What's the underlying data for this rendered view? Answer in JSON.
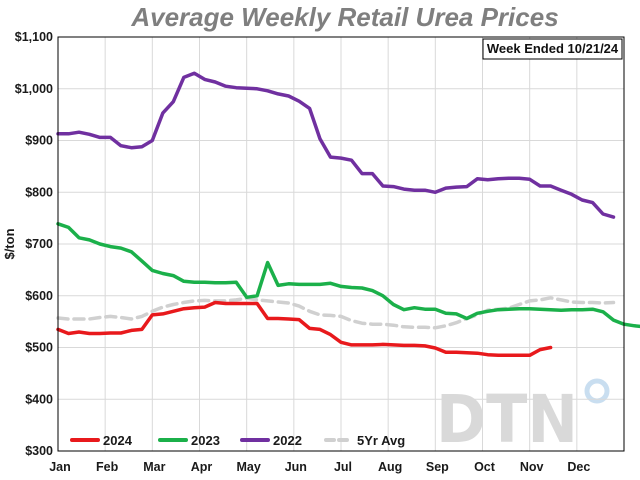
{
  "chart_data": {
    "type": "line",
    "title": "Average Weekly Retail Urea Prices",
    "ylabel": "$/ton",
    "annotation": "Week Ended 10/21/24",
    "logo_text": "DTN",
    "ylim": [
      300,
      1100
    ],
    "yticks": [
      300,
      400,
      500,
      600,
      700,
      800,
      900,
      1000,
      1100
    ],
    "ytick_labels": [
      "$300",
      "$400",
      "$500",
      "$600",
      "$700",
      "$800",
      "$900",
      "$1,000",
      "$1,100"
    ],
    "months": [
      "Jan",
      "Feb",
      "Mar",
      "Apr",
      "May",
      "Jun",
      "Jul",
      "Aug",
      "Sep",
      "Oct",
      "Nov",
      "Dec"
    ],
    "x_unit": "week",
    "grid": true,
    "legend_position": "bottom-left",
    "series": [
      {
        "name": "2024",
        "color": "#e8191c",
        "dash": false,
        "points": [
          [
            0,
            535
          ],
          [
            1,
            527
          ],
          [
            2,
            530
          ],
          [
            3,
            527
          ],
          [
            4,
            527
          ],
          [
            5,
            528
          ],
          [
            6,
            528
          ],
          [
            7,
            533
          ],
          [
            8,
            535
          ],
          [
            9,
            563
          ],
          [
            10,
            565
          ],
          [
            11,
            570
          ],
          [
            12,
            575
          ],
          [
            13,
            577
          ],
          [
            14,
            578
          ],
          [
            15,
            587
          ],
          [
            16,
            585
          ],
          [
            17,
            585
          ],
          [
            18,
            585
          ],
          [
            19,
            585
          ],
          [
            20,
            556
          ],
          [
            21,
            556
          ],
          [
            22,
            555
          ],
          [
            23,
            554
          ],
          [
            24,
            537
          ],
          [
            25,
            535
          ],
          [
            26,
            525
          ],
          [
            27,
            510
          ],
          [
            28,
            505
          ],
          [
            29,
            505
          ],
          [
            30,
            505
          ],
          [
            31,
            506
          ],
          [
            32,
            505
          ],
          [
            33,
            504
          ],
          [
            34,
            504
          ],
          [
            35,
            503
          ],
          [
            36,
            499
          ],
          [
            37,
            491
          ],
          [
            38,
            491
          ],
          [
            39,
            490
          ],
          [
            40,
            489
          ],
          [
            41,
            486
          ],
          [
            42,
            485
          ],
          [
            43,
            485
          ],
          [
            44,
            485
          ],
          [
            45,
            485
          ],
          [
            46,
            496
          ],
          [
            47,
            500
          ]
        ]
      },
      {
        "name": "2023",
        "color": "#1bb04a",
        "dash": false,
        "points": [
          [
            0,
            739
          ],
          [
            1,
            732
          ],
          [
            2,
            712
          ],
          [
            3,
            708
          ],
          [
            4,
            700
          ],
          [
            5,
            695
          ],
          [
            6,
            692
          ],
          [
            7,
            685
          ],
          [
            8,
            667
          ],
          [
            9,
            649
          ],
          [
            10,
            643
          ],
          [
            11,
            639
          ],
          [
            12,
            628
          ],
          [
            13,
            626
          ],
          [
            14,
            626
          ],
          [
            15,
            625
          ],
          [
            16,
            625
          ],
          [
            17,
            626
          ],
          [
            18,
            597
          ],
          [
            19,
            600
          ],
          [
            20,
            664
          ],
          [
            21,
            620
          ],
          [
            22,
            623
          ],
          [
            23,
            622
          ],
          [
            24,
            622
          ],
          [
            25,
            622
          ],
          [
            26,
            624
          ],
          [
            27,
            618
          ],
          [
            28,
            616
          ],
          [
            29,
            615
          ],
          [
            30,
            610
          ],
          [
            31,
            600
          ],
          [
            32,
            583
          ],
          [
            33,
            573
          ],
          [
            34,
            577
          ],
          [
            35,
            574
          ],
          [
            36,
            574
          ],
          [
            37,
            566
          ],
          [
            38,
            565
          ],
          [
            39,
            556
          ],
          [
            40,
            566
          ],
          [
            41,
            570
          ],
          [
            42,
            573
          ],
          [
            43,
            574
          ],
          [
            44,
            575
          ],
          [
            45,
            575
          ],
          [
            46,
            574
          ],
          [
            47,
            573
          ],
          [
            48,
            572
          ],
          [
            49,
            573
          ],
          [
            50,
            573
          ],
          [
            51,
            574
          ],
          [
            52,
            569
          ],
          [
            53,
            553
          ],
          [
            54,
            545
          ],
          [
            55,
            542
          ],
          [
            56,
            540
          ],
          [
            57,
            538
          ],
          [
            58,
            537
          ],
          [
            59,
            537
          ]
        ]
      },
      {
        "name": "2022",
        "color": "#7030a0",
        "dash": false,
        "points": [
          [
            0,
            913
          ],
          [
            1,
            913
          ],
          [
            2,
            916
          ],
          [
            3,
            912
          ],
          [
            4,
            906
          ],
          [
            5,
            906
          ],
          [
            6,
            890
          ],
          [
            7,
            886
          ],
          [
            8,
            888
          ],
          [
            9,
            900
          ],
          [
            10,
            953
          ],
          [
            11,
            975
          ],
          [
            12,
            1022
          ],
          [
            13,
            1030
          ],
          [
            14,
            1018
          ],
          [
            15,
            1013
          ],
          [
            16,
            1005
          ],
          [
            17,
            1002
          ],
          [
            18,
            1001
          ],
          [
            19,
            1000
          ],
          [
            20,
            996
          ],
          [
            21,
            990
          ],
          [
            22,
            986
          ],
          [
            23,
            976
          ],
          [
            24,
            962
          ],
          [
            25,
            903
          ],
          [
            26,
            868
          ],
          [
            27,
            866
          ],
          [
            28,
            862
          ],
          [
            29,
            836
          ],
          [
            30,
            836
          ],
          [
            31,
            812
          ],
          [
            32,
            811
          ],
          [
            33,
            806
          ],
          [
            34,
            804
          ],
          [
            35,
            804
          ],
          [
            36,
            800
          ],
          [
            37,
            808
          ],
          [
            38,
            810
          ],
          [
            39,
            811
          ],
          [
            40,
            826
          ],
          [
            41,
            824
          ],
          [
            42,
            826
          ],
          [
            43,
            827
          ],
          [
            44,
            827
          ],
          [
            45,
            825
          ],
          [
            46,
            812
          ],
          [
            47,
            812
          ],
          [
            48,
            804
          ],
          [
            49,
            796
          ],
          [
            50,
            785
          ],
          [
            51,
            780
          ],
          [
            52,
            758
          ],
          [
            53,
            752
          ]
        ]
      },
      {
        "name": "5Yr Avg",
        "color": "#d0d0d0",
        "dash": true,
        "points": [
          [
            0,
            557
          ],
          [
            1,
            555
          ],
          [
            2,
            555
          ],
          [
            3,
            555
          ],
          [
            4,
            558
          ],
          [
            5,
            560
          ],
          [
            6,
            558
          ],
          [
            7,
            555
          ],
          [
            8,
            560
          ],
          [
            9,
            570
          ],
          [
            10,
            578
          ],
          [
            11,
            583
          ],
          [
            12,
            587
          ],
          [
            13,
            590
          ],
          [
            14,
            591
          ],
          [
            15,
            590
          ],
          [
            16,
            590
          ],
          [
            17,
            592
          ],
          [
            18,
            595
          ],
          [
            19,
            592
          ],
          [
            20,
            590
          ],
          [
            21,
            588
          ],
          [
            22,
            586
          ],
          [
            23,
            580
          ],
          [
            24,
            570
          ],
          [
            25,
            563
          ],
          [
            26,
            562
          ],
          [
            27,
            560
          ],
          [
            28,
            552
          ],
          [
            29,
            547
          ],
          [
            30,
            545
          ],
          [
            31,
            545
          ],
          [
            32,
            543
          ],
          [
            33,
            540
          ],
          [
            34,
            539
          ],
          [
            35,
            539
          ],
          [
            36,
            538
          ],
          [
            37,
            542
          ],
          [
            38,
            548
          ],
          [
            39,
            556
          ],
          [
            40,
            563
          ],
          [
            41,
            572
          ],
          [
            42,
            574
          ],
          [
            43,
            576
          ],
          [
            44,
            583
          ],
          [
            45,
            590
          ],
          [
            46,
            592
          ],
          [
            47,
            596
          ],
          [
            48,
            592
          ],
          [
            49,
            588
          ],
          [
            50,
            587
          ],
          [
            51,
            587
          ],
          [
            52,
            586
          ],
          [
            53,
            587
          ]
        ]
      }
    ]
  }
}
